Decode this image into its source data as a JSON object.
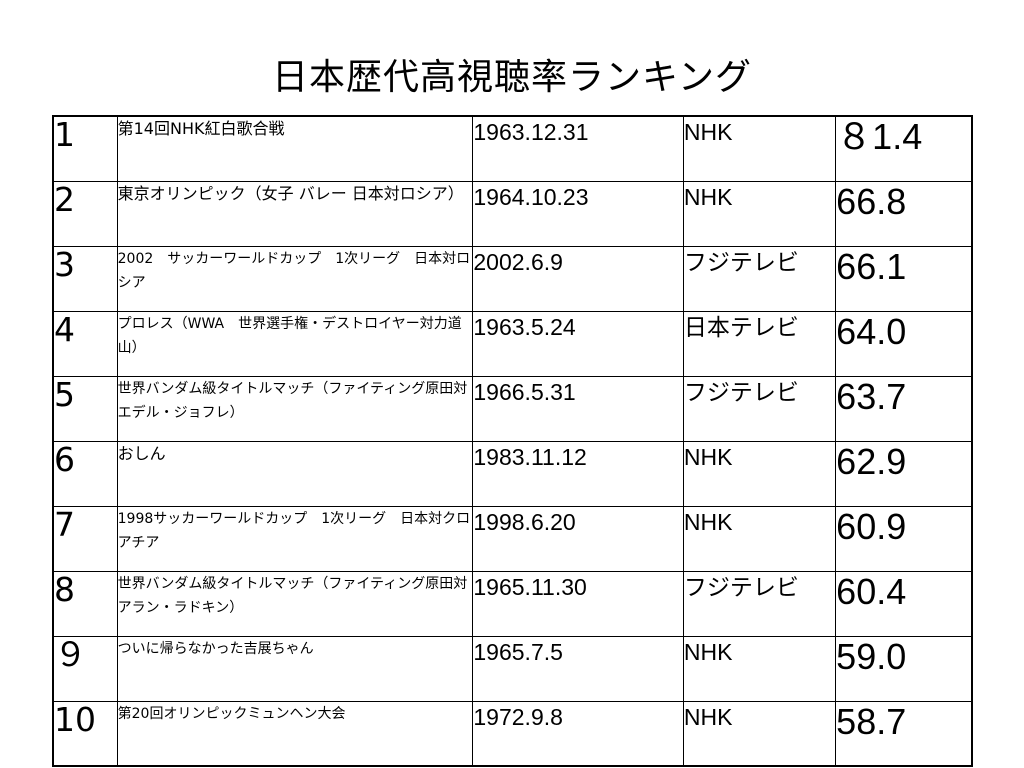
{
  "title": "日本歴代高視聴率ランキング",
  "rows": [
    {
      "rank": "1",
      "event": "第14回NHK紅白歌合戦",
      "date": "1963.12.31",
      "station": "NHK",
      "rating": "８1.4"
    },
    {
      "rank": "2",
      "event": "東京オリンピック（女子 バレー 日本対ロシア）",
      "date": "1964.10.23",
      "station": "NHK",
      "rating": "66.8"
    },
    {
      "rank": "3",
      "event": "2002　サッカーワールドカップ　1次リーグ　日本対ロシア",
      "date": "2002.6.9",
      "station": "フジテレビ",
      "rating": "66.1"
    },
    {
      "rank": "4",
      "event": "プロレス（WWA　世界選手権・デストロイヤー対力道山）",
      "date": "1963.5.24",
      "station": "日本テレビ",
      "rating": "64.0"
    },
    {
      "rank": "5",
      "event": "世界バンダム級タイトルマッチ（ファイティング原田対エデル・ジョフレ）",
      "date": "1966.5.31",
      "station": "フジテレビ",
      "rating": "63.7"
    },
    {
      "rank": "6",
      "event": "おしん",
      "date": "1983.11.12",
      "station": "NHK",
      "rating": "62.9"
    },
    {
      "rank": "7",
      "event": "1998サッカーワールドカップ　1次リーグ　日本対クロアチア",
      "date": "1998.6.20",
      "station": "NHK",
      "rating": "60.9"
    },
    {
      "rank": "8",
      "event": "世界バンダム級タイトルマッチ（ファイティング原田対アラン・ラドキン）",
      "date": "1965.11.30",
      "station": "フジテレビ",
      "rating": "60.4"
    },
    {
      "rank": "９",
      "event": "ついに帰らなかった吉展ちゃん",
      "date": "1965.7.5",
      "station": "NHK",
      "rating": "59.0"
    },
    {
      "rank": "10",
      "event": "第20回オリンピックミュンヘン大会",
      "date": "1972.9.8",
      "station": "NHK",
      "rating": "58.7"
    }
  ]
}
